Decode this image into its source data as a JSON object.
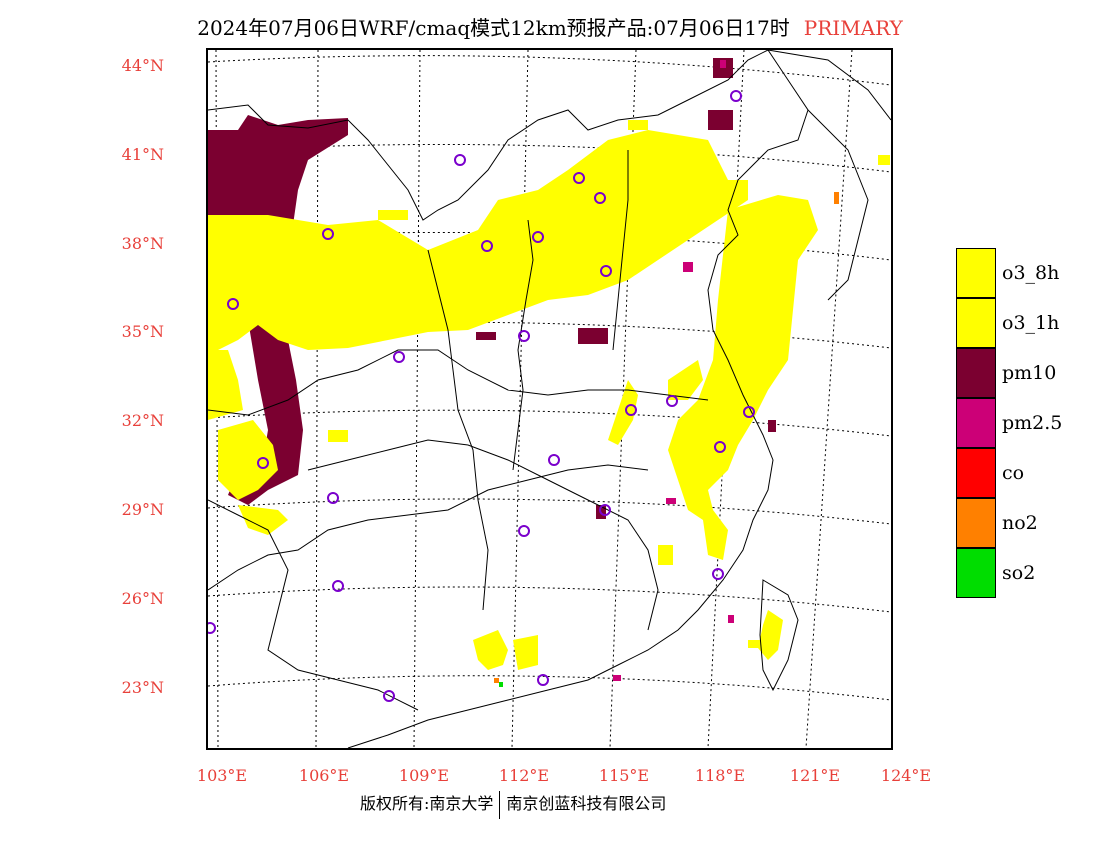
{
  "title": "2024年07月06日WRF/cmaq模式12km预报产品:07月06日17时",
  "title_tag": "PRIMARY",
  "lat_labels": [
    "44°N",
    "41°N",
    "38°N",
    "35°N",
    "32°N",
    "29°N",
    "26°N",
    "23°N"
  ],
  "lon_labels": [
    "103°E",
    "106°E",
    "109°E",
    "112°E",
    "115°E",
    "118°E",
    "121°E",
    "124°E"
  ],
  "legend": [
    {
      "label": "o3_8h",
      "color": "#ffff00"
    },
    {
      "label": "o3_1h",
      "color": "#ffff00"
    },
    {
      "label": "pm10",
      "color": "#7b0030"
    },
    {
      "label": "pm2.5",
      "color": "#cc0077"
    },
    {
      "label": "co",
      "color": "#ff0000"
    },
    {
      "label": "no2",
      "color": "#ff8000"
    },
    {
      "label": "so2",
      "color": "#00dd00"
    }
  ],
  "footer": {
    "left": "版权所有:南京大学",
    "right": "南京创蓝科技有限公司"
  }
}
